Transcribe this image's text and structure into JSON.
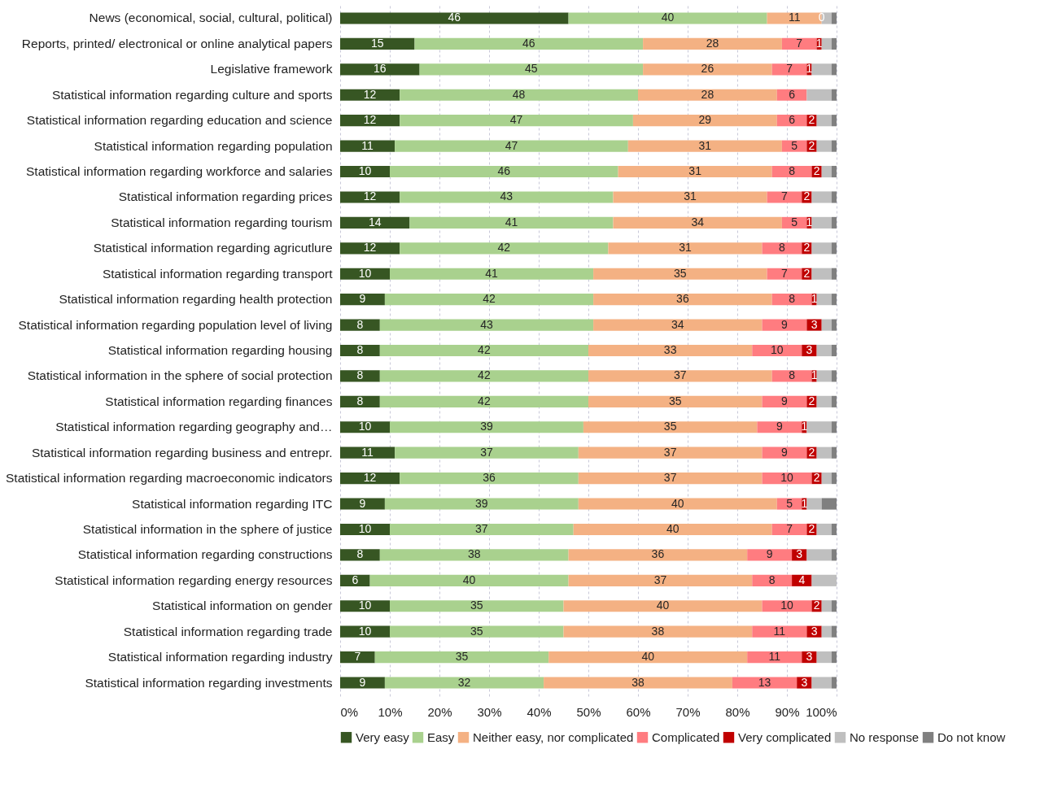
{
  "chart_data": {
    "type": "bar",
    "orientation": "horizontal",
    "stacked": true,
    "categories": [
      "News (economical, social, cultural, political)",
      "Reports, printed/ electronical or online analytical papers",
      "Legislative framework",
      "Statistical information regarding culture and sports",
      "Statistical information regarding education and science",
      "Statistical information regarding population",
      "Statistical information regarding workforce and salaries",
      "Statistical information regarding prices",
      "Statistical information regarding tourism",
      "Statistical information regarding  agricutlure",
      "Statistical information regarding transport",
      "Statistical information regarding health protection",
      "Statistical information regarding population level of living",
      "Statistical information regarding housing",
      "Statistical information in the sphere of social protection",
      "Statistical information regarding finances",
      "Statistical information regarding geography and…",
      "Statistical information regarding business and entrepr.",
      "Statistical information regarding macroeconomic indicators",
      "Statistical information regarding ITC",
      "Statistical information in the sphere of justice",
      "Statistical information regarding constructions",
      "Statistical information regarding energy resources",
      "Statistical information on gender",
      "Statistical information regarding trade",
      "Statistical information regarding industry",
      "Statistical information regarding investments"
    ],
    "series": [
      {
        "name": "Very easy",
        "color": "#375623",
        "values": [
          46,
          15,
          16,
          12,
          12,
          11,
          10,
          12,
          14,
          12,
          10,
          9,
          8,
          8,
          8,
          8,
          10,
          11,
          12,
          9,
          10,
          8,
          6,
          10,
          10,
          7,
          9
        ],
        "value_labels": [
          "46",
          "15",
          "16",
          "12",
          "12",
          "11",
          "10",
          "12",
          "14",
          "12",
          "10",
          "9",
          "8",
          "8",
          "8",
          "8",
          "10",
          "11",
          "12",
          "9",
          "10",
          "8",
          "6",
          "10",
          "10",
          "7",
          "9"
        ]
      },
      {
        "name": "Easy",
        "color": "#a9d18e",
        "values": [
          40,
          46,
          45,
          48,
          47,
          47,
          46,
          43,
          41,
          42,
          41,
          42,
          43,
          42,
          42,
          42,
          39,
          37,
          36,
          39,
          37,
          38,
          40,
          35,
          35,
          35,
          32
        ],
        "value_labels": [
          "40",
          "46",
          "45",
          "48",
          "47",
          "47",
          "46",
          "43",
          "41",
          "42",
          "41",
          "42",
          "43",
          "42",
          "42",
          "42",
          "39",
          "37",
          "36",
          "39",
          "37",
          "38",
          "40",
          "35",
          "35",
          "35",
          "32"
        ]
      },
      {
        "name": "Neither easy, nor complicated",
        "color": "#f4b183",
        "values": [
          11,
          28,
          26,
          28,
          29,
          31,
          31,
          31,
          34,
          31,
          35,
          36,
          34,
          33,
          37,
          35,
          35,
          37,
          37,
          40,
          40,
          36,
          37,
          40,
          38,
          40,
          38
        ],
        "value_labels": [
          "11",
          "28",
          "26",
          "28",
          "29",
          "31",
          "31",
          "31",
          "34",
          "31",
          "35",
          "36",
          "34",
          "33",
          "37",
          "35",
          "35",
          "37",
          "37",
          "40",
          "40",
          "36",
          "37",
          "40",
          "38",
          "40",
          "38"
        ]
      },
      {
        "name": "Complicated",
        "color": "#ff7c80",
        "values": [
          0,
          7,
          7,
          6,
          6,
          5,
          8,
          7,
          5,
          8,
          7,
          8,
          9,
          10,
          8,
          9,
          9,
          9,
          10,
          5,
          7,
          9,
          8,
          10,
          11,
          11,
          13
        ],
        "value_labels": [
          null,
          "7",
          "7",
          "6",
          "6",
          "5",
          "8",
          "7",
          "5",
          "8",
          "7",
          "8",
          "9",
          "10",
          "8",
          "9",
          "9",
          "9",
          "10",
          "5",
          "7",
          "9",
          "8",
          "10",
          "11",
          "11",
          "13"
        ]
      },
      {
        "name": "Very complicated",
        "color": "#c00000",
        "values": [
          0,
          1,
          1,
          0,
          2,
          2,
          2,
          2,
          1,
          2,
          2,
          1,
          3,
          3,
          1,
          2,
          1,
          2,
          2,
          1,
          2,
          3,
          4,
          2,
          3,
          3,
          3
        ],
        "value_labels": [
          "0",
          "1",
          "1",
          null,
          "2",
          "2",
          "2",
          "2",
          "1",
          "2",
          "2",
          "1",
          "3",
          "3",
          "1",
          "2",
          "1",
          "2",
          "2",
          "1",
          "2",
          "3",
          "4",
          "2",
          "3",
          "3",
          "3"
        ]
      },
      {
        "name": "No response",
        "color": "#bfbfbf",
        "values": [
          2,
          2,
          4,
          5,
          3,
          3,
          2,
          4,
          4,
          4,
          4,
          3,
          2,
          3,
          3,
          3,
          5,
          3,
          2,
          3,
          3,
          5,
          5,
          2,
          2,
          3,
          4
        ]
      },
      {
        "name": "Do not know",
        "color": "#808080",
        "values": [
          1,
          1,
          1,
          1,
          1,
          1,
          1,
          1,
          1,
          1,
          1,
          1,
          1,
          1,
          1,
          1,
          1,
          1,
          1,
          3,
          1,
          1,
          0,
          1,
          1,
          1,
          1
        ]
      }
    ],
    "xlim": [
      0,
      100
    ],
    "xticks": [
      {
        "value": 0,
        "label": "0%"
      },
      {
        "value": 10,
        "label": "10%"
      },
      {
        "value": 20,
        "label": "20%"
      },
      {
        "value": 30,
        "label": "30%"
      },
      {
        "value": 40,
        "label": "40%"
      },
      {
        "value": 50,
        "label": "50%"
      },
      {
        "value": 60,
        "label": "60%"
      },
      {
        "value": 70,
        "label": "70%"
      },
      {
        "value": 80,
        "label": "80%"
      },
      {
        "value": 90,
        "label": "90%"
      },
      {
        "value": 100,
        "label": "100%"
      }
    ],
    "grid": "x",
    "legend": "bottom"
  }
}
